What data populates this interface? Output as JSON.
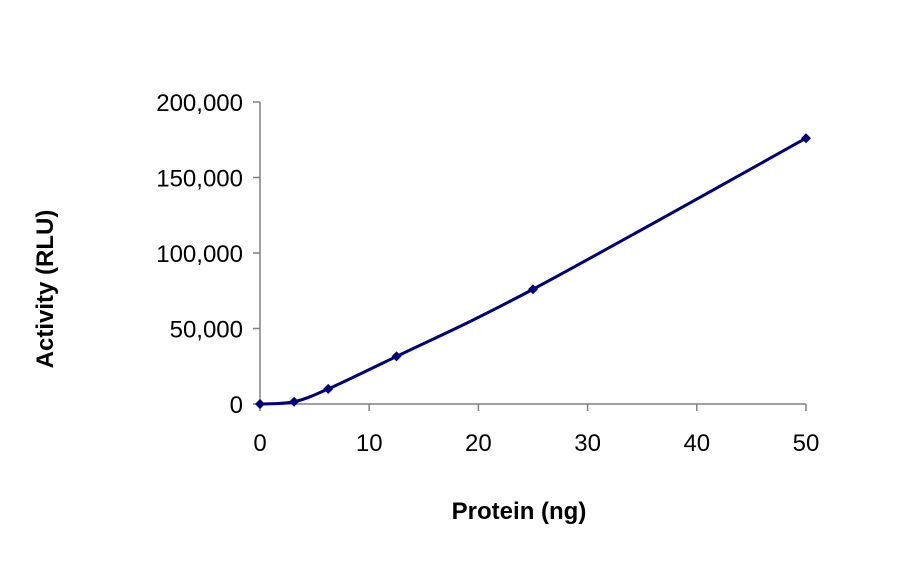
{
  "chart_data": {
    "type": "line",
    "title": "",
    "xlabel": "Protein (ng)",
    "ylabel": "Activity (RLU)",
    "xlim": [
      0,
      50
    ],
    "ylim": [
      0,
      200000
    ],
    "xticks": [
      0,
      10,
      20,
      30,
      40,
      50
    ],
    "xtick_labels": [
      "0",
      "10",
      "20",
      "30",
      "40",
      "50"
    ],
    "yticks": [
      0,
      50000,
      100000,
      150000,
      200000
    ],
    "ytick_labels": [
      "0",
      "50,000",
      "100,000",
      "150,000",
      "200,000"
    ],
    "grid": false,
    "legend": "none",
    "series": [
      {
        "name": "Activity",
        "color": "#000080",
        "marker": "diamond",
        "smooth": true,
        "x": [
          0,
          3.125,
          6.25,
          12.5,
          25,
          50
        ],
        "y": [
          0,
          1500,
          10000,
          31500,
          76000,
          176000
        ]
      }
    ]
  }
}
